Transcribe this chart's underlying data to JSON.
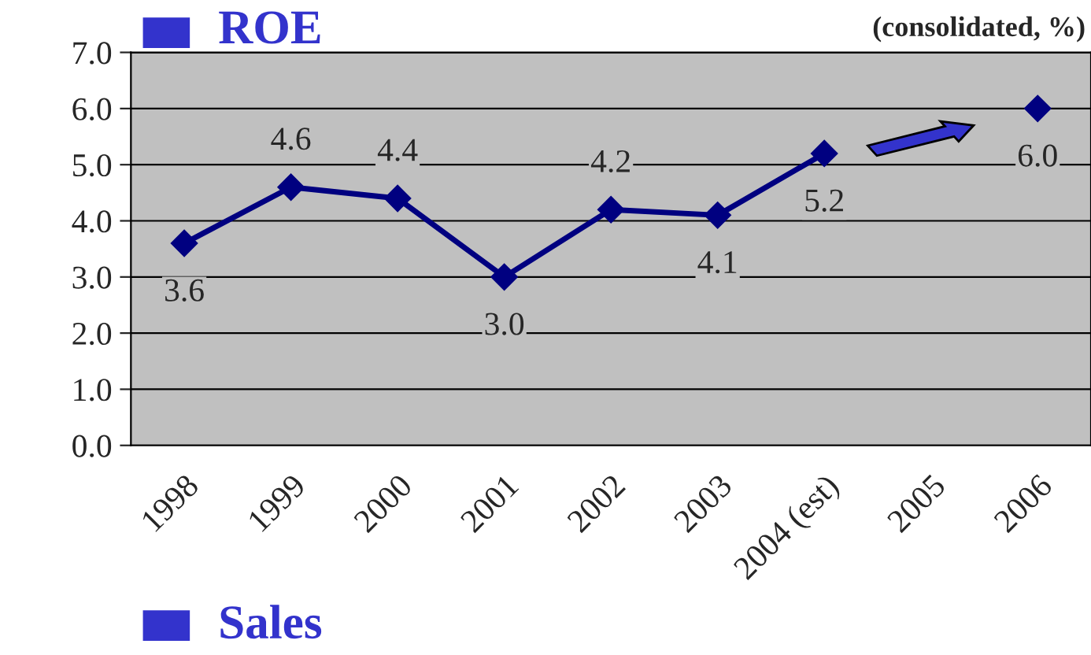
{
  "chart_data": {
    "type": "line",
    "title": "ROE",
    "subtitle": "(consolidated, %)",
    "annotations": [
      "Sales"
    ],
    "categories": [
      "1998",
      "1999",
      "2000",
      "2001",
      "2002",
      "2003",
      "2004 (est)",
      "2005",
      "2006"
    ],
    "series": [
      {
        "color": "#000080",
        "values": [
          3.6,
          4.6,
          4.4,
          3.0,
          4.2,
          4.1,
          5.2,
          null,
          6.0
        ],
        "value_labels": [
          "3.6",
          "4.6",
          "4.4",
          "3.0",
          "4.2",
          "4.1",
          "5.2",
          null,
          "6.0"
        ]
      }
    ],
    "ylim": [
      0,
      7
    ],
    "yticks": [
      {
        "value": 0,
        "label": "0.0"
      },
      {
        "value": 1,
        "label": "1.0"
      },
      {
        "value": 2,
        "label": "2.0"
      },
      {
        "value": 3,
        "label": "3.0"
      },
      {
        "value": 4,
        "label": "4.0"
      },
      {
        "value": 5,
        "label": "5.0"
      },
      {
        "value": 6,
        "label": "6.0"
      },
      {
        "value": 7,
        "label": "7.0"
      }
    ],
    "grid": "y",
    "marker": "diamond",
    "line_style": "solid",
    "legend": false
  }
}
